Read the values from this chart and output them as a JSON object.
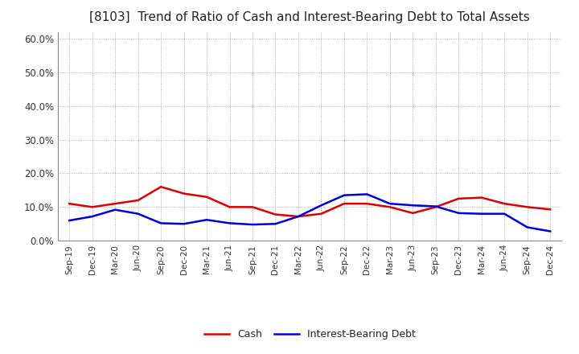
{
  "title": "[8103]  Trend of Ratio of Cash and Interest-Bearing Debt to Total Assets",
  "x_labels": [
    "Sep-19",
    "Dec-19",
    "Mar-20",
    "Jun-20",
    "Sep-20",
    "Dec-20",
    "Mar-21",
    "Jun-21",
    "Sep-21",
    "Dec-21",
    "Mar-22",
    "Jun-22",
    "Sep-22",
    "Dec-22",
    "Mar-23",
    "Jun-23",
    "Sep-23",
    "Dec-23",
    "Mar-24",
    "Jun-24",
    "Sep-24",
    "Dec-24"
  ],
  "cash": [
    0.11,
    0.1,
    0.11,
    0.12,
    0.16,
    0.14,
    0.13,
    0.1,
    0.1,
    0.078,
    0.072,
    0.08,
    0.11,
    0.11,
    0.1,
    0.082,
    0.1,
    0.125,
    0.128,
    0.11,
    0.1,
    0.093
  ],
  "interest_bearing_debt": [
    0.06,
    0.072,
    0.092,
    0.08,
    0.052,
    0.05,
    0.062,
    0.052,
    0.048,
    0.05,
    0.072,
    0.105,
    0.135,
    0.138,
    0.11,
    0.105,
    0.102,
    0.082,
    0.08,
    0.08,
    0.04,
    0.028
  ],
  "cash_color": "#dd0000",
  "ibd_color": "#0000dd",
  "ylim": [
    0.0,
    0.62
  ],
  "yticks": [
    0.0,
    0.1,
    0.2,
    0.3,
    0.4,
    0.5,
    0.6
  ],
  "ytick_labels": [
    "0.0%",
    "10.0%",
    "20.0%",
    "30.0%",
    "40.0%",
    "50.0%",
    "60.0%"
  ],
  "background_color": "#ffffff",
  "plot_bg_color": "#ffffff",
  "grid_color": "#999999",
  "legend_cash": "Cash",
  "legend_ibd": "Interest-Bearing Debt",
  "line_width": 1.8,
  "title_fontsize": 11
}
